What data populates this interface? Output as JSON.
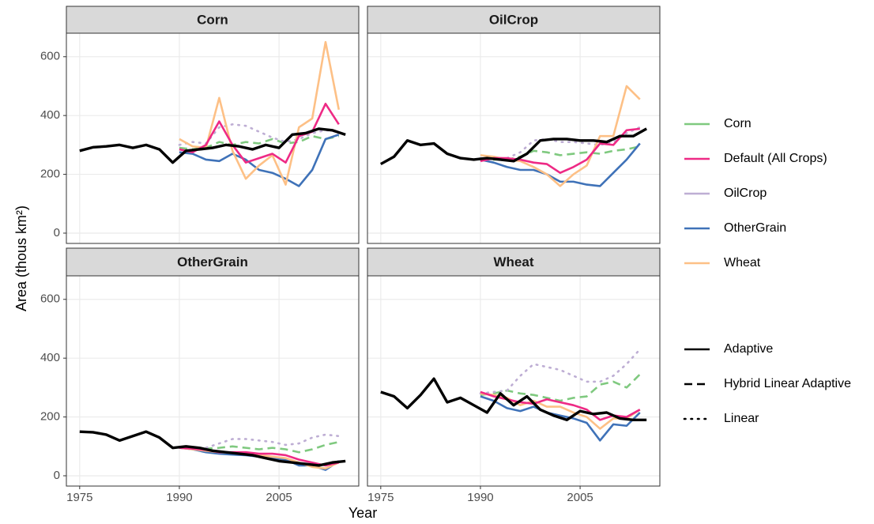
{
  "chart_data": {
    "type": "line",
    "xlabel": "Year",
    "ylabel": "Area (thous km²)",
    "xlim": [
      1973,
      2017
    ],
    "ylim": [
      -35,
      680
    ],
    "xticks": [
      1975,
      1990,
      2005
    ],
    "yticks": [
      0,
      200,
      400,
      600
    ],
    "grid": true,
    "legend_position": "right",
    "color_legend": [
      {
        "name": "Corn",
        "color": "#7fc97f"
      },
      {
        "name": "Default (All Crops)",
        "color": "#ee2a85"
      },
      {
        "name": "OilCrop",
        "color": "#beaed4"
      },
      {
        "name": "OtherGrain",
        "color": "#3f72b8"
      },
      {
        "name": "Wheat",
        "color": "#fdc086"
      }
    ],
    "linetype_legend": [
      {
        "name": "Adaptive",
        "style": "solid"
      },
      {
        "name": "Hybrid Linear Adaptive",
        "style": "dashed"
      },
      {
        "name": "Linear",
        "style": "dotted"
      }
    ],
    "facets": [
      {
        "title": "Corn",
        "series": [
          {
            "name": "Corn",
            "color": "#7fc97f",
            "linetype": "dashed",
            "x": [
              1990,
              1992,
              1994,
              1996,
              1998,
              2000,
              2002,
              2004,
              2006,
              2008,
              2010,
              2012,
              2014
            ],
            "values": [
              290,
              285,
              290,
              310,
              300,
              310,
              305,
              320,
              305,
              310,
              330,
              320,
              330
            ]
          },
          {
            "name": "OilCrop",
            "color": "#beaed4",
            "linetype": "dotted",
            "x": [
              1990,
              1992,
              1994,
              1996,
              1998,
              2000,
              2002,
              2004,
              2006,
              2008,
              2010,
              2012,
              2014
            ],
            "values": [
              300,
              310,
              305,
              360,
              370,
              365,
              345,
              325,
              310,
              320,
              340,
              350,
              345
            ]
          },
          {
            "name": "OtherGrain",
            "color": "#3f72b8",
            "linetype": "solid",
            "x": [
              1990,
              1992,
              1994,
              1996,
              1998,
              2000,
              2002,
              2004,
              2006,
              2008,
              2010,
              2012,
              2014
            ],
            "values": [
              275,
              270,
              250,
              245,
              270,
              250,
              215,
              205,
              185,
              160,
              215,
              320,
              335
            ]
          },
          {
            "name": "Wheat",
            "color": "#fdc086",
            "linetype": "solid",
            "x": [
              1990,
              1992,
              1994,
              1996,
              1998,
              2000,
              2002,
              2004,
              2006,
              2008,
              2010,
              2012,
              2014
            ],
            "values": [
              320,
              295,
              290,
              460,
              280,
              185,
              230,
              265,
              165,
              360,
              390,
              650,
              420
            ]
          },
          {
            "name": "Default (All Crops)",
            "color": "#ee2a85",
            "linetype": "solid",
            "x": [
              1990,
              1992,
              1994,
              1996,
              1998,
              2000,
              2002,
              2004,
              2006,
              2008,
              2010,
              2012,
              2014
            ],
            "values": [
              285,
              275,
              300,
              380,
              300,
              240,
              255,
              270,
              240,
              330,
              345,
              440,
              370
            ]
          },
          {
            "color": "#000000",
            "linetype": "solid",
            "x": [
              1975,
              1977,
              1979,
              1981,
              1983,
              1985,
              1987,
              1989,
              1991,
              1993,
              1995,
              1997,
              1999,
              2001,
              2003,
              2005,
              2007,
              2009,
              2011,
              2013,
              2015
            ],
            "values": [
              280,
              292,
              295,
              300,
              290,
              300,
              285,
              240,
              280,
              285,
              290,
              300,
              295,
              285,
              300,
              290,
              335,
              340,
              355,
              350,
              335
            ]
          }
        ]
      },
      {
        "title": "OilCrop",
        "series": [
          {
            "name": "Corn",
            "color": "#7fc97f",
            "linetype": "dashed",
            "x": [
              1990,
              1992,
              1994,
              1996,
              1998,
              2000,
              2002,
              2004,
              2006,
              2008,
              2010,
              2012,
              2014
            ],
            "values": [
              250,
              250,
              250,
              260,
              280,
              275,
              265,
              270,
              275,
              270,
              280,
              285,
              295
            ]
          },
          {
            "name": "OilCrop",
            "color": "#beaed4",
            "linetype": "dotted",
            "x": [
              1990,
              1992,
              1994,
              1996,
              1998,
              2000,
              2002,
              2004,
              2006,
              2008,
              2010,
              2012,
              2014
            ],
            "values": [
              255,
              255,
              255,
              275,
              315,
              320,
              310,
              310,
              305,
              300,
              310,
              340,
              360
            ]
          },
          {
            "name": "OtherGrain",
            "color": "#3f72b8",
            "linetype": "solid",
            "x": [
              1990,
              1992,
              1994,
              1996,
              1998,
              2000,
              2002,
              2004,
              2006,
              2008,
              2010,
              2012,
              2014
            ],
            "values": [
              250,
              240,
              225,
              215,
              215,
              200,
              175,
              175,
              165,
              160,
              205,
              250,
              305
            ]
          },
          {
            "name": "Wheat",
            "color": "#fdc086",
            "linetype": "solid",
            "x": [
              1990,
              1992,
              1994,
              1996,
              1998,
              2000,
              2002,
              2004,
              2006,
              2008,
              2010,
              2012,
              2014
            ],
            "values": [
              265,
              260,
              250,
              245,
              225,
              200,
              160,
              200,
              230,
              330,
              330,
              500,
              455
            ]
          },
          {
            "name": "Default (All Crops)",
            "color": "#ee2a85",
            "linetype": "solid",
            "x": [
              1990,
              1992,
              1994,
              1996,
              1998,
              2000,
              2002,
              2004,
              2006,
              2008,
              2010,
              2012,
              2014
            ],
            "values": [
              245,
              255,
              255,
              250,
              240,
              235,
              205,
              225,
              250,
              305,
              300,
              350,
              355
            ]
          },
          {
            "color": "#000000",
            "linetype": "solid",
            "x": [
              1975,
              1977,
              1979,
              1981,
              1983,
              1985,
              1987,
              1989,
              1991,
              1993,
              1995,
              1997,
              1999,
              2001,
              2003,
              2005,
              2007,
              2009,
              2011,
              2013,
              2015
            ],
            "values": [
              235,
              260,
              315,
              300,
              305,
              270,
              255,
              250,
              255,
              250,
              245,
              270,
              315,
              320,
              320,
              315,
              315,
              310,
              330,
              330,
              355
            ]
          }
        ]
      },
      {
        "title": "OtherGrain",
        "series": [
          {
            "name": "Corn",
            "color": "#7fc97f",
            "linetype": "dashed",
            "x": [
              1990,
              1992,
              1994,
              1996,
              1998,
              2000,
              2002,
              2004,
              2006,
              2008,
              2010,
              2012,
              2014
            ],
            "values": [
              95,
              95,
              92,
              95,
              100,
              95,
              90,
              95,
              90,
              80,
              90,
              105,
              115
            ]
          },
          {
            "name": "OilCrop",
            "color": "#beaed4",
            "linetype": "dotted",
            "x": [
              1990,
              1992,
              1994,
              1996,
              1998,
              2000,
              2002,
              2004,
              2006,
              2008,
              2010,
              2012,
              2014
            ],
            "values": [
              95,
              95,
              95,
              110,
              125,
              125,
              120,
              115,
              105,
              110,
              130,
              140,
              135
            ]
          },
          {
            "name": "OtherGrain",
            "color": "#3f72b8",
            "linetype": "solid",
            "x": [
              1990,
              1992,
              1994,
              1996,
              1998,
              2000,
              2002,
              2004,
              2006,
              2008,
              2010,
              2012,
              2014
            ],
            "values": [
              95,
              90,
              80,
              75,
              72,
              70,
              65,
              60,
              55,
              35,
              35,
              20,
              50
            ]
          },
          {
            "name": "Wheat",
            "color": "#fdc086",
            "linetype": "solid",
            "x": [
              1990,
              1992,
              1994,
              1996,
              1998,
              2000,
              2002,
              2004,
              2006,
              2008,
              2010,
              2012,
              2014
            ],
            "values": [
              95,
              90,
              85,
              80,
              78,
              75,
              70,
              65,
              60,
              45,
              30,
              25,
              45
            ]
          },
          {
            "name": "Default (All Crops)",
            "color": "#ee2a85",
            "linetype": "solid",
            "x": [
              1990,
              1992,
              1994,
              1996,
              1998,
              2000,
              2002,
              2004,
              2006,
              2008,
              2010,
              2012,
              2014
            ],
            "values": [
              95,
              92,
              88,
              80,
              80,
              80,
              75,
              75,
              70,
              55,
              45,
              35,
              45
            ]
          },
          {
            "color": "#000000",
            "linetype": "solid",
            "x": [
              1975,
              1977,
              1979,
              1981,
              1983,
              1985,
              1987,
              1989,
              1991,
              1993,
              1995,
              1997,
              1999,
              2001,
              2003,
              2005,
              2007,
              2009,
              2011,
              2013,
              2015
            ],
            "values": [
              150,
              148,
              140,
              120,
              135,
              150,
              130,
              95,
              100,
              95,
              85,
              80,
              75,
              70,
              60,
              50,
              45,
              40,
              35,
              45,
              50
            ]
          }
        ]
      },
      {
        "title": "Wheat",
        "series": [
          {
            "name": "Corn",
            "color": "#7fc97f",
            "linetype": "dashed",
            "x": [
              1990,
              1992,
              1994,
              1996,
              1998,
              2000,
              2002,
              2004,
              2006,
              2008,
              2010,
              2012,
              2014
            ],
            "values": [
              275,
              280,
              290,
              280,
              275,
              265,
              255,
              265,
              270,
              310,
              320,
              300,
              345
            ]
          },
          {
            "name": "OilCrop",
            "color": "#beaed4",
            "linetype": "dotted",
            "x": [
              1990,
              1992,
              1994,
              1996,
              1998,
              2000,
              2002,
              2004,
              2006,
              2008,
              2010,
              2012,
              2014
            ],
            "values": [
              280,
              285,
              290,
              340,
              380,
              370,
              360,
              340,
              320,
              320,
              340,
              380,
              430
            ]
          },
          {
            "name": "OtherGrain",
            "color": "#3f72b8",
            "linetype": "solid",
            "x": [
              1990,
              1992,
              1994,
              1996,
              1998,
              2000,
              2002,
              2004,
              2006,
              2008,
              2010,
              2012,
              2014
            ],
            "values": [
              270,
              255,
              230,
              220,
              235,
              215,
              205,
              195,
              180,
              120,
              175,
              170,
              215
            ]
          },
          {
            "name": "Wheat",
            "color": "#fdc086",
            "linetype": "solid",
            "x": [
              1990,
              1992,
              1994,
              1996,
              1998,
              2000,
              2002,
              2004,
              2006,
              2008,
              2010,
              2012,
              2014
            ],
            "values": [
              280,
              275,
              265,
              240,
              255,
              235,
              235,
              215,
              200,
              160,
              195,
              195,
              225
            ]
          },
          {
            "name": "Default (All Crops)",
            "color": "#ee2a85",
            "linetype": "solid",
            "x": [
              1990,
              1992,
              1994,
              1996,
              1998,
              2000,
              2002,
              2004,
              2006,
              2008,
              2010,
              2012,
              2014
            ],
            "values": [
              285,
              270,
              260,
              250,
              245,
              260,
              250,
              240,
              225,
              190,
              205,
              200,
              225
            ]
          },
          {
            "color": "#000000",
            "linetype": "solid",
            "x": [
              1975,
              1977,
              1979,
              1981,
              1983,
              1985,
              1987,
              1989,
              1991,
              1993,
              1995,
              1997,
              1999,
              2001,
              2003,
              2005,
              2007,
              2009,
              2011,
              2013,
              2015
            ],
            "values": [
              285,
              270,
              230,
              275,
              330,
              250,
              265,
              240,
              215,
              280,
              240,
              270,
              225,
              205,
              190,
              220,
              210,
              215,
              195,
              190,
              190
            ]
          }
        ]
      }
    ]
  }
}
